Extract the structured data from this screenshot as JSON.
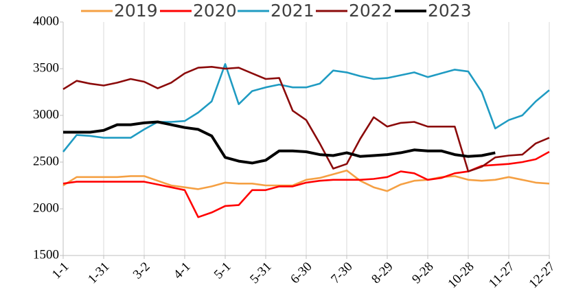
{
  "chart_data": {
    "type": "line",
    "categories": [
      "1-1",
      null,
      null,
      "1-31",
      null,
      null,
      "3-2",
      null,
      null,
      "4-1",
      null,
      null,
      "5-1",
      null,
      null,
      "5-31",
      null,
      null,
      "6-30",
      null,
      null,
      "7-30",
      null,
      null,
      "8-29",
      null,
      null,
      "9-28",
      null,
      null,
      "10-28",
      null,
      null,
      "11-27",
      null,
      null,
      "12-27"
    ],
    "series": [
      {
        "name": "2019",
        "color": "#f5a043",
        "values": [
          2250,
          2340,
          2340,
          2340,
          2340,
          2350,
          2350,
          2300,
          2250,
          2230,
          2210,
          2240,
          2280,
          2270,
          2270,
          2250,
          2250,
          2250,
          2310,
          2330,
          2370,
          2410,
          2300,
          2230,
          2190,
          2260,
          2300,
          2310,
          2340,
          2350,
          2310,
          2300,
          2310,
          2340,
          2310,
          2280,
          2270
        ]
      },
      {
        "name": "2020",
        "color": "#ff0000",
        "values": [
          2270,
          2290,
          2290,
          2290,
          2290,
          2290,
          2290,
          2260,
          2230,
          2200,
          1910,
          1960,
          2030,
          2040,
          2200,
          2200,
          2240,
          2240,
          2280,
          2300,
          2310,
          2310,
          2310,
          2320,
          2340,
          2400,
          2380,
          2310,
          2330,
          2380,
          2400,
          2460,
          2470,
          2480,
          2500,
          2530,
          2610
        ]
      },
      {
        "name": "2021",
        "color": "#1f9bc2",
        "values": [
          2610,
          2790,
          2780,
          2760,
          2760,
          2760,
          2850,
          2930,
          2930,
          2940,
          3030,
          3150,
          3550,
          3120,
          3260,
          3300,
          3330,
          3300,
          3300,
          3340,
          3480,
          3460,
          3420,
          3390,
          3400,
          3430,
          3460,
          3410,
          3450,
          3490,
          3470,
          3250,
          2860,
          2950,
          3000,
          3150,
          3270
        ]
      },
      {
        "name": "2022",
        "color": "#8b0a0a",
        "values": [
          3280,
          3370,
          3340,
          3320,
          3350,
          3390,
          3360,
          3290,
          3350,
          3450,
          3510,
          3520,
          3500,
          3510,
          3450,
          3390,
          3400,
          3050,
          2950,
          2700,
          2430,
          2480,
          2750,
          2980,
          2880,
          2920,
          2930,
          2880,
          2880,
          2880,
          2400,
          2450,
          2550,
          2570,
          2580,
          2700,
          2760
        ]
      },
      {
        "name": "2023",
        "color": "#000000",
        "values": [
          2820,
          2820,
          2820,
          2840,
          2900,
          2900,
          2920,
          2930,
          2900,
          2870,
          2850,
          2780,
          2550,
          2510,
          2490,
          2520,
          2620,
          2620,
          2610,
          2580,
          2570,
          2600,
          2560,
          2570,
          2580,
          2600,
          2630,
          2620,
          2620,
          2580,
          2560,
          2570,
          2600,
          null,
          null,
          null,
          null
        ]
      }
    ],
    "ylim": [
      1500,
      4000
    ],
    "yticks": [
      1500,
      2000,
      2500,
      3000,
      3500,
      4000
    ],
    "grid": "x",
    "legend": "top"
  }
}
